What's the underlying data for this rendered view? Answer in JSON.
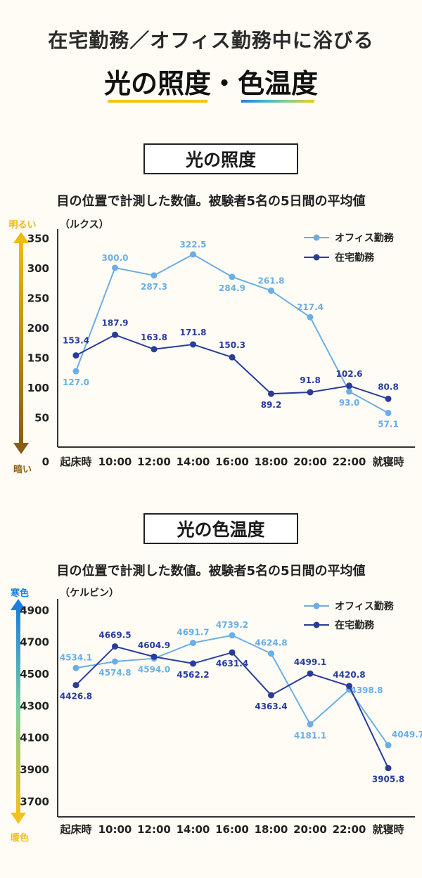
{
  "header": {
    "line1": "在宅勤務／オフィス勤務中に浴びる",
    "part1": "光の照度",
    "separator": "・",
    "part2": "色温度"
  },
  "colors": {
    "office": "#6baee6",
    "home": "#283c9c",
    "axis": "#333333",
    "bright_arrow": "#f0b90f",
    "dark_arrow": "#8a5d14",
    "cool_arrow": "#1a7fe0",
    "warm_arrow": "#f2c11a"
  },
  "sections": [
    {
      "title": "光の照度",
      "subtitle": "目の位置で計測した数値。被験者5名の5日間の平均値"
    },
    {
      "title": "光の色温度",
      "subtitle": "目の位置で計測した数値。被験者5名の5日間の平均値"
    }
  ],
  "chart_data": [
    {
      "type": "line",
      "unit_label": "（ルクス）",
      "top_label": "明るい",
      "bottom_label": "暗い",
      "categories": [
        "起床時",
        "10:00",
        "12:00",
        "14:00",
        "16:00",
        "18:00",
        "20:00",
        "22:00",
        "就寝時"
      ],
      "yticks": [
        0,
        50,
        100,
        150,
        200,
        250,
        300,
        350
      ],
      "ylim": [
        0,
        360
      ],
      "legend_position": "top-right",
      "series": [
        {
          "name": "オフィス勤務",
          "color_key": "office",
          "values": [
            127.0,
            300.0,
            287.3,
            322.5,
            284.9,
            261.8,
            217.4,
            93.0,
            57.1
          ],
          "labels": [
            "127.0",
            "300.0",
            "287.3",
            "322.5",
            "284.9",
            "261.8",
            "217.4",
            "93.0",
            "57.1"
          ]
        },
        {
          "name": "在宅勤務",
          "color_key": "home",
          "values": [
            153.4,
            187.9,
            163.8,
            171.8,
            150.3,
            89.2,
            91.8,
            102.6,
            80.8
          ],
          "labels": [
            "153.4",
            "187.9",
            "163.8",
            "171.8",
            "150.3",
            "89.2",
            "91.8",
            "102.6",
            "80.8"
          ]
        }
      ]
    },
    {
      "type": "line",
      "unit_label": "（ケルビン）",
      "top_label": "寒色",
      "bottom_label": "暖色",
      "categories": [
        "起床時",
        "10:00",
        "12:00",
        "14:00",
        "16:00",
        "18:00",
        "20:00",
        "22:00",
        "就寝時"
      ],
      "yticks": [
        3700,
        3900,
        4100,
        4300,
        4500,
        4700,
        4900
      ],
      "ylim": [
        3600,
        4950
      ],
      "legend_position": "top-right",
      "series": [
        {
          "name": "オフィス勤務",
          "color_key": "office",
          "values": [
            4534.1,
            4574.8,
            4594.0,
            4691.7,
            4739.2,
            4624.8,
            4181.1,
            4398.8,
            4049.7
          ],
          "labels": [
            "4534.1",
            "4574.8",
            "4594.0",
            "4691.7",
            "4739.2",
            "4624.8",
            "4181.1",
            "4398.8",
            "4049.7"
          ]
        },
        {
          "name": "在宅勤務",
          "color_key": "home",
          "values": [
            4426.8,
            4669.5,
            4604.9,
            4562.2,
            4631.4,
            4363.4,
            4499.1,
            4420.8,
            3905.8
          ],
          "labels": [
            "4426.8",
            "4669.5",
            "4604.9",
            "4562.2",
            "4631.4",
            "4363.4",
            "4499.1",
            "4420.8",
            "3905.8"
          ]
        }
      ]
    }
  ]
}
